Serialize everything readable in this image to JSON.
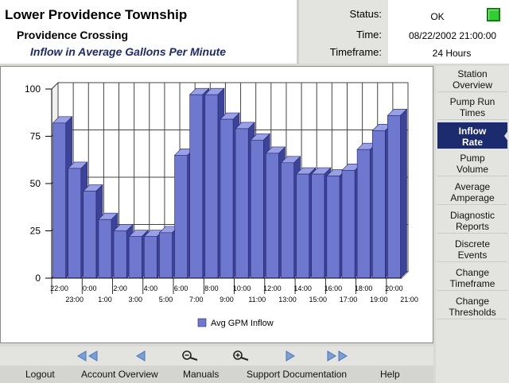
{
  "header": {
    "title": "Lower Providence Township",
    "subtitle": "Providence Crossing",
    "chart_title": "Inflow in Average Gallons Per Minute"
  },
  "status": {
    "status_label": "Status:",
    "status_value": "OK",
    "status_color": "#33cc33",
    "time_label": "Time:",
    "time_value": "08/22/2002 21:00:00",
    "timeframe_label": "Timeframe:",
    "timeframe_value": "24 Hours"
  },
  "sidebar": {
    "items": [
      {
        "line1": "Station",
        "line2": "Overview"
      },
      {
        "line1": "Pump Run",
        "line2": "Times"
      },
      {
        "line1": "Inflow",
        "line2": "Rate",
        "active": true
      },
      {
        "line1": "Pump",
        "line2": "Volume"
      },
      {
        "line1": "Average",
        "line2": "Amperage"
      },
      {
        "line1": "Diagnostic",
        "line2": "Reports"
      },
      {
        "line1": "Discrete",
        "line2": "Events"
      },
      {
        "line1": "Change",
        "line2": "Timeframe"
      },
      {
        "line1": "Change",
        "line2": "Thresholds"
      }
    ]
  },
  "nav": {
    "buttons": [
      {
        "icon": "double-left-arrow-icon"
      },
      {
        "icon": "left-arrow-icon"
      },
      {
        "icon": "zoom-out-icon"
      },
      {
        "icon": "zoom-in-icon"
      },
      {
        "icon": "right-arrow-icon"
      },
      {
        "icon": "double-right-arrow-icon"
      }
    ]
  },
  "footer": {
    "links": [
      "Logout",
      "Account Overview",
      "Manuals",
      "Support Documentation",
      "Help"
    ]
  },
  "chart_data": {
    "type": "bar",
    "title": "",
    "xlabel": "",
    "ylabel": "",
    "ylim": [
      0,
      100
    ],
    "yticks": [
      0,
      25,
      50,
      75,
      100
    ],
    "grid": true,
    "legend_position": "bottom",
    "bar_color": "#6f78cf",
    "categories": [
      "22:00-23:00",
      "23:00-0:00",
      "0:00-1:00",
      "1:00-2:00",
      "2:00-3:00",
      "3:00-4:00",
      "4:00-5:00",
      "5:00-6:00",
      "6:00-7:00",
      "7:00-8:00",
      "8:00-9:00",
      "9:00-10:00",
      "10:00-11:00",
      "11:00-12:00",
      "12:00-13:00",
      "13:00-14:00",
      "14:00-15:00",
      "15:00-16:00",
      "16:00-17:00",
      "17:00-18:00",
      "18:00-19:00",
      "19:00-20:00",
      "20:00-21:00"
    ],
    "tick_labels_top": [
      "22:00",
      "0:00",
      "2:00",
      "4:00",
      "6:00",
      "8:00",
      "10:00",
      "12:00",
      "14:00",
      "16:00",
      "18:00",
      "20:00"
    ],
    "tick_labels_bottom": [
      "23:00",
      "1:00",
      "3:00",
      "5:00",
      "7:00",
      "9:00",
      "11:00",
      "13:00",
      "15:00",
      "17:00",
      "19:00",
      "21:00"
    ],
    "series": [
      {
        "name": "Avg GPM Inflow",
        "values": [
          82,
          58,
          46,
          31,
          25,
          22,
          22,
          24,
          65,
          97,
          97,
          84,
          79,
          73,
          66,
          61,
          55,
          55,
          54,
          57,
          68,
          78,
          86
        ]
      }
    ]
  }
}
